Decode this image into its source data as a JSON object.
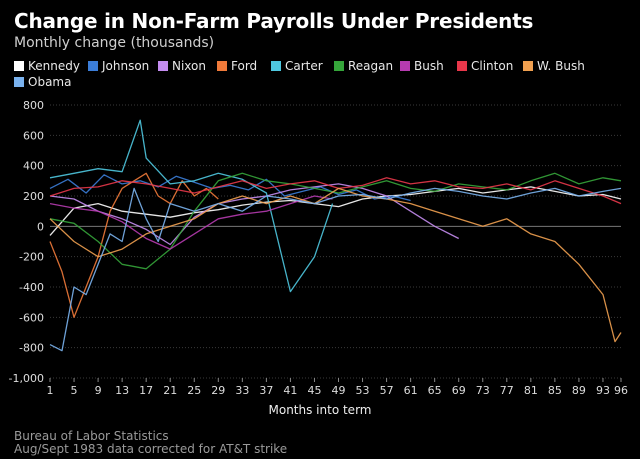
{
  "chart_data": {
    "type": "line",
    "title": "Change in Non-Farm Payrolls Under Presidents",
    "subtitle": "Monthly change (thousands)",
    "xlabel": "Months into term",
    "ylabel": "",
    "ylim": [
      -1000,
      800
    ],
    "yticks": [
      -1000,
      -800,
      -600,
      -400,
      -200,
      0,
      200,
      400,
      600,
      800
    ],
    "yticklabels": [
      "-1,000",
      "-800",
      "-600",
      "-400",
      "-200",
      "0",
      "200",
      "400",
      "600",
      "800"
    ],
    "xlim": [
      1,
      96
    ],
    "xticks": [
      1,
      5,
      9,
      13,
      17,
      21,
      25,
      29,
      33,
      37,
      41,
      45,
      49,
      53,
      57,
      61,
      65,
      69,
      73,
      77,
      81,
      85,
      89,
      93,
      96
    ],
    "legend_position": "top",
    "series": [
      {
        "name": "Kennedy",
        "color": "#ffffff",
        "x": [
          1,
          5,
          9,
          13,
          17,
          21,
          25,
          29,
          33,
          37,
          41,
          45,
          49,
          53,
          57,
          61,
          65,
          69,
          73,
          77,
          81,
          85,
          89,
          93,
          96
        ],
        "values": [
          -60,
          120,
          150,
          100,
          80,
          60,
          90,
          110,
          140,
          160,
          170,
          150,
          130,
          180,
          200,
          210,
          230,
          250,
          220,
          240,
          260,
          230,
          200,
          210,
          180
        ]
      },
      {
        "name": "Johnson",
        "color": "#3b7dd8",
        "x": [
          1,
          4,
          7,
          10,
          13,
          16,
          19,
          22,
          25,
          28,
          31,
          34,
          37,
          40,
          43,
          46,
          49,
          52,
          55,
          58,
          61
        ],
        "values": [
          250,
          310,
          220,
          340,
          280,
          300,
          260,
          330,
          290,
          250,
          270,
          240,
          310,
          200,
          230,
          260,
          210,
          240,
          180,
          200,
          170
        ]
      },
      {
        "name": "Nixon",
        "color": "#c48cf0",
        "x": [
          1,
          5,
          9,
          13,
          17,
          21,
          25,
          29,
          33,
          37,
          41,
          45,
          49,
          53,
          57,
          61,
          65,
          69
        ],
        "values": [
          200,
          180,
          100,
          50,
          -20,
          -120,
          60,
          150,
          180,
          200,
          240,
          260,
          280,
          250,
          200,
          100,
          0,
          -80
        ]
      },
      {
        "name": "Ford",
        "color": "#f07a3a",
        "x": [
          1,
          3,
          5,
          7,
          9,
          11,
          13,
          15,
          17,
          19,
          21,
          23,
          25,
          27,
          29
        ],
        "values": [
          -100,
          -300,
          -600,
          -400,
          -200,
          100,
          250,
          300,
          350,
          200,
          150,
          300,
          200,
          250,
          180
        ]
      },
      {
        "name": "Carter",
        "color": "#4fc8e0",
        "x": [
          1,
          5,
          9,
          13,
          16,
          17,
          21,
          25,
          29,
          33,
          37,
          41,
          45,
          48
        ],
        "values": [
          320,
          350,
          380,
          360,
          700,
          450,
          280,
          300,
          350,
          310,
          220,
          -430,
          -200,
          150
        ]
      },
      {
        "name": "Reagan",
        "color": "#35a53a",
        "x": [
          1,
          5,
          9,
          13,
          17,
          21,
          25,
          29,
          33,
          37,
          41,
          45,
          49,
          53,
          57,
          61,
          65,
          69,
          73,
          77,
          81,
          85,
          89,
          93,
          96
        ],
        "values": [
          50,
          20,
          -100,
          -250,
          -280,
          -150,
          100,
          300,
          350,
          300,
          280,
          250,
          220,
          260,
          300,
          250,
          230,
          280,
          260,
          240,
          300,
          350,
          280,
          320,
          300
        ]
      },
      {
        "name": "Bush",
        "color": "#b63bb0",
        "x": [
          1,
          5,
          9,
          13,
          17,
          21,
          25,
          29,
          33,
          37,
          41,
          45,
          48
        ],
        "values": [
          150,
          120,
          100,
          30,
          -80,
          -150,
          -50,
          50,
          80,
          100,
          150,
          200,
          180
        ]
      },
      {
        "name": "Clinton",
        "color": "#e8374a",
        "x": [
          1,
          5,
          9,
          13,
          17,
          21,
          25,
          29,
          33,
          37,
          41,
          45,
          49,
          53,
          57,
          61,
          65,
          69,
          73,
          77,
          81,
          85,
          89,
          93,
          96
        ],
        "values": [
          200,
          250,
          260,
          300,
          280,
          250,
          220,
          260,
          300,
          250,
          280,
          300,
          250,
          270,
          320,
          280,
          300,
          260,
          250,
          280,
          240,
          300,
          250,
          200,
          150
        ]
      },
      {
        "name": "W. Bush",
        "color": "#f0a050",
        "x": [
          1,
          5,
          9,
          13,
          17,
          21,
          25,
          29,
          33,
          37,
          41,
          45,
          49,
          53,
          57,
          61,
          65,
          69,
          73,
          77,
          81,
          85,
          89,
          93,
          95,
          96
        ],
        "values": [
          50,
          -100,
          -200,
          -150,
          -50,
          0,
          50,
          150,
          200,
          150,
          200,
          150,
          250,
          200,
          180,
          150,
          100,
          50,
          0,
          50,
          -50,
          -100,
          -250,
          -450,
          -760,
          -700
        ]
      },
      {
        "name": "Obama",
        "color": "#7ab2ee",
        "x": [
          1,
          3,
          5,
          7,
          9,
          11,
          13,
          15,
          17,
          19,
          21,
          25,
          29,
          33,
          37,
          41,
          45,
          49,
          53,
          57,
          61,
          65,
          69,
          73,
          77,
          81,
          85,
          89,
          93,
          96
        ],
        "values": [
          -780,
          -820,
          -400,
          -450,
          -250,
          -50,
          -100,
          250,
          50,
          -100,
          150,
          100,
          150,
          100,
          200,
          180,
          150,
          200,
          210,
          180,
          220,
          250,
          230,
          200,
          180,
          220,
          250,
          200,
          230,
          250
        ]
      }
    ]
  },
  "source": {
    "line1": "Bureau of Labor Statistics",
    "line2": "Aug/Sept 1983 data corrected for AT&T strike"
  }
}
